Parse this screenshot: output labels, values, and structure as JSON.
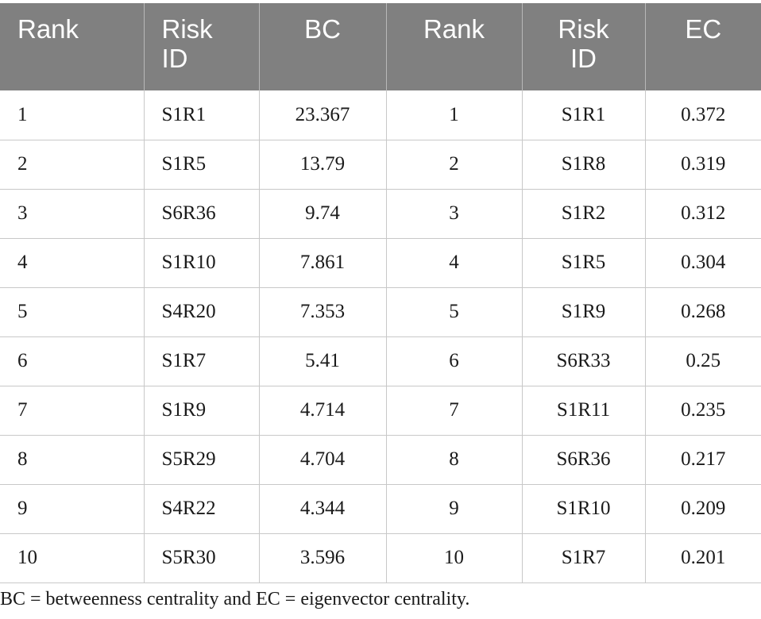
{
  "table": {
    "headers": [
      {
        "line1": "Rank",
        "line2": ""
      },
      {
        "line1": "Risk",
        "line2": "ID"
      },
      {
        "line1": "BC",
        "line2": ""
      },
      {
        "line1": "Rank",
        "line2": ""
      },
      {
        "line1": "Risk",
        "line2": "ID"
      },
      {
        "line1": "EC",
        "line2": ""
      }
    ],
    "rows": [
      [
        "1",
        "S1R1",
        "23.367",
        "1",
        "S1R1",
        "0.372"
      ],
      [
        "2",
        "S1R5",
        "13.79",
        "2",
        "S1R8",
        "0.319"
      ],
      [
        "3",
        "S6R36",
        "9.74",
        "3",
        "S1R2",
        "0.312"
      ],
      [
        "4",
        "S1R10",
        "7.861",
        "4",
        "S1R5",
        "0.304"
      ],
      [
        "5",
        "S4R20",
        "7.353",
        "5",
        "S1R9",
        "0.268"
      ],
      [
        "6",
        "S1R7",
        "5.41",
        "6",
        "S6R33",
        "0.25"
      ],
      [
        "7",
        "S1R9",
        "4.714",
        "7",
        "S1R11",
        "0.235"
      ],
      [
        "8",
        "S5R29",
        "4.704",
        "8",
        "S6R36",
        "0.217"
      ],
      [
        "9",
        "S4R22",
        "4.344",
        "9",
        "S1R10",
        "0.209"
      ],
      [
        "10",
        "S5R30",
        "3.596",
        "10",
        "S1R7",
        "0.201"
      ]
    ]
  },
  "footnote": "BC = betweenness centrality and EC = eigenvector centrality."
}
